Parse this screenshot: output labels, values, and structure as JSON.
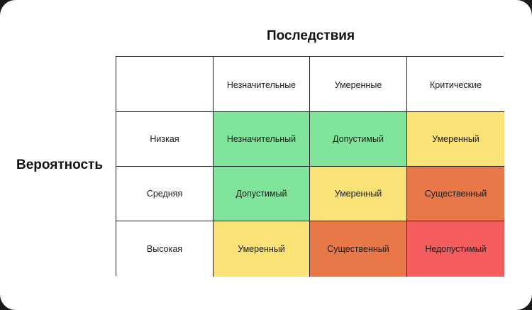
{
  "colors": {
    "green": "#80e59a",
    "yellow": "#fbe277",
    "orange": "#e87847",
    "red": "#f45c5d",
    "header_bg": "#ffffff"
  },
  "x_axis_title": "Последствия",
  "y_axis_title": "Вероятность",
  "columns": [
    "Незначительные",
    "Умеренные",
    "Критические"
  ],
  "rows": [
    {
      "label": "Низкая",
      "cells": [
        {
          "text": "Незначительный",
          "level": "green"
        },
        {
          "text": "Допустимый",
          "level": "green"
        },
        {
          "text": "Умеренный",
          "level": "yellow"
        }
      ]
    },
    {
      "label": "Средняя",
      "cells": [
        {
          "text": "Допустимый",
          "level": "green"
        },
        {
          "text": "Умеренный",
          "level": "yellow"
        },
        {
          "text": "Существенный",
          "level": "orange"
        }
      ]
    },
    {
      "label": "Высокая",
      "cells": [
        {
          "text": "Умеренный",
          "level": "yellow"
        },
        {
          "text": "Существенный",
          "level": "orange"
        },
        {
          "text": "Недопустимый",
          "level": "red"
        }
      ]
    }
  ]
}
